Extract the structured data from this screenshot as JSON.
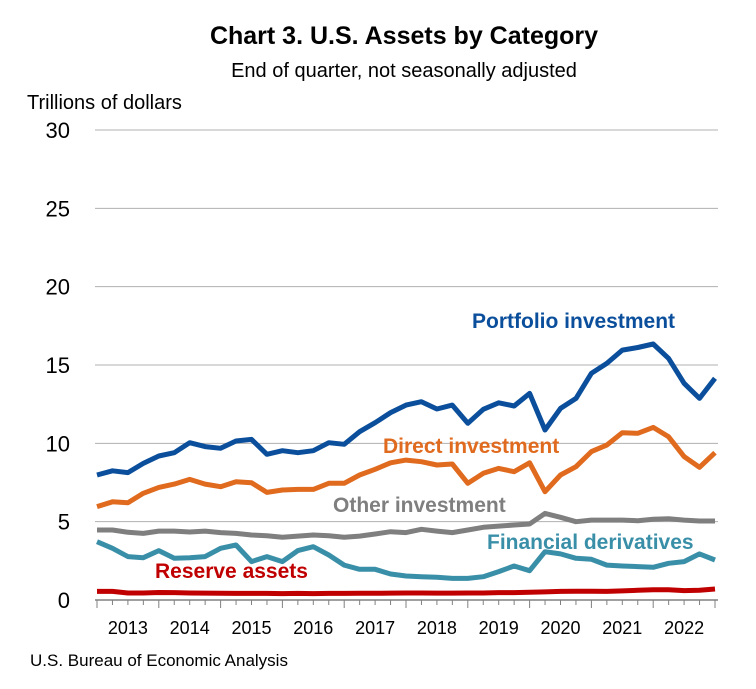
{
  "chart_data": {
    "type": "line",
    "title": "Chart 3. U.S. Assets by Category",
    "subtitle": "End of quarter, not seasonally adjusted",
    "ylabel": "Trillions of dollars",
    "xlabel": "",
    "ylim": [
      0,
      30
    ],
    "yticks": [
      "0",
      "5",
      "10",
      "15",
      "20",
      "25",
      "30"
    ],
    "xticks": [
      "2013",
      "2014",
      "2015",
      "2016",
      "2017",
      "2018",
      "2019",
      "2020",
      "2021",
      "2022"
    ],
    "grid": true,
    "legend": "inline labels",
    "series": [
      {
        "name": "Portfolio investment",
        "color": "#0b4f9c",
        "values": [
          7.98,
          8.25,
          8.13,
          8.72,
          9.19,
          9.4,
          10.04,
          9.79,
          9.68,
          10.15,
          10.25,
          9.3,
          9.53,
          9.4,
          9.53,
          10.04,
          9.94,
          10.74,
          11.32,
          11.96,
          12.44,
          12.66,
          12.19,
          12.44,
          11.28,
          12.17,
          12.59,
          12.38,
          13.19,
          10.85,
          12.23,
          12.87,
          14.47,
          15.1,
          15.95,
          16.12,
          16.34,
          15.42,
          13.83,
          12.87,
          14.15
        ]
      },
      {
        "name": "Direct investment",
        "color": "#e06a1e",
        "values": [
          5.96,
          6.27,
          6.21,
          6.81,
          7.19,
          7.4,
          7.7,
          7.4,
          7.23,
          7.55,
          7.49,
          6.87,
          7.02,
          7.06,
          7.06,
          7.45,
          7.45,
          7.98,
          8.34,
          8.76,
          8.93,
          8.83,
          8.62,
          8.68,
          7.45,
          8.09,
          8.4,
          8.19,
          8.76,
          6.91,
          7.98,
          8.51,
          9.47,
          9.89,
          10.68,
          10.64,
          11.02,
          10.42,
          9.15,
          8.47,
          9.4
        ]
      },
      {
        "name": "Other investment",
        "color": "#7f7f7f",
        "values": [
          4.47,
          4.47,
          4.32,
          4.25,
          4.4,
          4.4,
          4.34,
          4.4,
          4.3,
          4.25,
          4.15,
          4.1,
          4.0,
          4.08,
          4.15,
          4.1,
          4.0,
          4.08,
          4.21,
          4.36,
          4.3,
          4.51,
          4.4,
          4.3,
          4.47,
          4.64,
          4.72,
          4.79,
          4.85,
          5.53,
          5.28,
          5.0,
          5.1,
          5.1,
          5.1,
          5.06,
          5.15,
          5.19,
          5.1,
          5.04,
          5.04
        ]
      },
      {
        "name": "Financial derivatives",
        "color": "#3a8fa8",
        "values": [
          3.72,
          3.3,
          2.77,
          2.7,
          3.15,
          2.66,
          2.7,
          2.77,
          3.3,
          3.51,
          2.45,
          2.77,
          2.45,
          3.15,
          3.4,
          2.87,
          2.23,
          1.96,
          1.96,
          1.66,
          1.53,
          1.49,
          1.45,
          1.38,
          1.38,
          1.49,
          1.81,
          2.17,
          1.87,
          3.08,
          2.94,
          2.66,
          2.6,
          2.23,
          2.17,
          2.13,
          2.09,
          2.34,
          2.45,
          2.94,
          2.55
        ]
      },
      {
        "name": "Reserve assets",
        "color": "#c00000",
        "values": [
          0.55,
          0.55,
          0.45,
          0.45,
          0.48,
          0.47,
          0.45,
          0.44,
          0.43,
          0.42,
          0.42,
          0.42,
          0.41,
          0.42,
          0.41,
          0.42,
          0.42,
          0.43,
          0.43,
          0.44,
          0.45,
          0.45,
          0.44,
          0.44,
          0.45,
          0.45,
          0.47,
          0.47,
          0.5,
          0.52,
          0.55,
          0.56,
          0.56,
          0.55,
          0.58,
          0.62,
          0.65,
          0.66,
          0.6,
          0.62,
          0.7
        ]
      }
    ]
  },
  "source": "U.S. Bureau of Economic Analysis"
}
